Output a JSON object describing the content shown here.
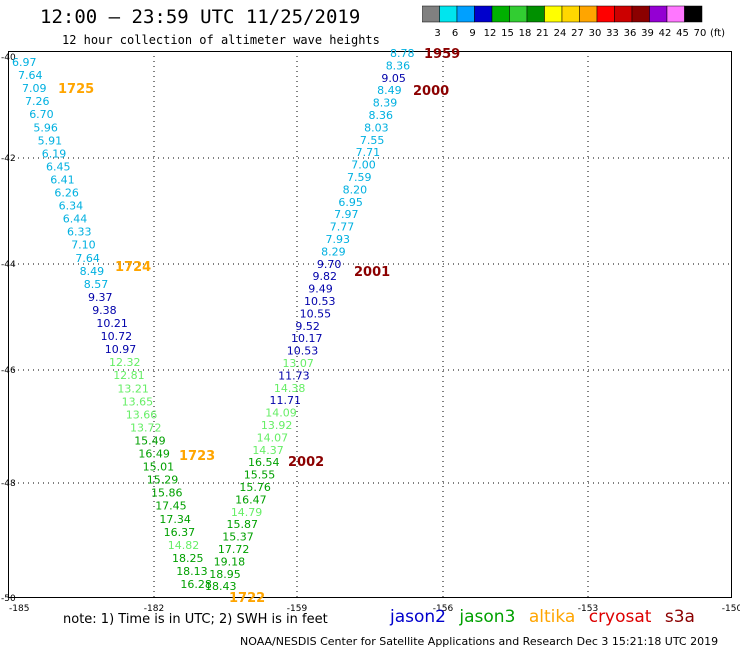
{
  "header": {
    "title": "12:00 – 23:59 UTC 11/25/2019",
    "subtitle": "12 hour collection of altimeter wave heights"
  },
  "colorbar": {
    "colors": [
      "#808080",
      "#00e5ee",
      "#00a0ff",
      "#0000cc",
      "#00b000",
      "#32cd32",
      "#009000",
      "#ffff00",
      "#ffd700",
      "#ffa500",
      "#ff0000",
      "#cc0000",
      "#8b0000",
      "#9400d3",
      "#ff77ff",
      "#000000"
    ],
    "labels": [
      "3",
      "6",
      "9",
      "12",
      "15",
      "18",
      "21",
      "24",
      "27",
      "30",
      "33",
      "36",
      "39",
      "42",
      "45",
      "70",
      "(ft)"
    ]
  },
  "map": {
    "lat_labels": [
      "-40",
      "-42",
      "-44",
      "-46",
      "-48",
      "-50"
    ],
    "lon_labels": [
      "-185",
      "-182",
      "-159",
      "-156",
      "-153",
      "-150"
    ],
    "time_labels": [
      {
        "text": "1959",
        "color": "#8b0000"
      },
      {
        "text": "2000",
        "color": "#8b0000"
      },
      {
        "text": "2001",
        "color": "#8b0000"
      },
      {
        "text": "2002",
        "color": "#8b0000"
      },
      {
        "text": "1725",
        "color": "#ffa500"
      },
      {
        "text": "1724",
        "color": "#ffa500"
      },
      {
        "text": "1723",
        "color": "#ffa500"
      },
      {
        "text": "1722",
        "color": "#ffa500"
      }
    ],
    "west_track": [
      {
        "v": "6.97",
        "c": "#00b0e0"
      },
      {
        "v": "7.64",
        "c": "#00b0e0"
      },
      {
        "v": "7.09",
        "c": "#00b0e0"
      },
      {
        "v": "7.26",
        "c": "#00b0e0"
      },
      {
        "v": "6.70",
        "c": "#00b0e0"
      },
      {
        "v": "5.96",
        "c": "#00b0e0"
      },
      {
        "v": "5.91",
        "c": "#00b0e0"
      },
      {
        "v": "6.19",
        "c": "#00b0e0"
      },
      {
        "v": "6.45",
        "c": "#00b0e0"
      },
      {
        "v": "6.41",
        "c": "#00b0e0"
      },
      {
        "v": "6.26",
        "c": "#00b0e0"
      },
      {
        "v": "6.34",
        "c": "#00b0e0"
      },
      {
        "v": "6.44",
        "c": "#00b0e0"
      },
      {
        "v": "6.33",
        "c": "#00b0e0"
      },
      {
        "v": "7.10",
        "c": "#00b0e0"
      },
      {
        "v": "7.64",
        "c": "#00b0e0"
      },
      {
        "v": "8.49",
        "c": "#00b0e0"
      },
      {
        "v": "8.57",
        "c": "#00b0e0"
      },
      {
        "v": "9.37",
        "c": "#0000aa"
      },
      {
        "v": "9.38",
        "c": "#0000aa"
      },
      {
        "v": "10.21",
        "c": "#0000aa"
      },
      {
        "v": "10.72",
        "c": "#0000aa"
      },
      {
        "v": "10.97",
        "c": "#0000aa"
      },
      {
        "v": "12.32",
        "c": "#66ee66"
      },
      {
        "v": "12.81",
        "c": "#66ee66"
      },
      {
        "v": "13.21",
        "c": "#66ee66"
      },
      {
        "v": "13.65",
        "c": "#66ee66"
      },
      {
        "v": "13.66",
        "c": "#66ee66"
      },
      {
        "v": "13.72",
        "c": "#66ee66"
      },
      {
        "v": "15.49",
        "c": "#00a000"
      },
      {
        "v": "16.49",
        "c": "#00a000"
      },
      {
        "v": "15.01",
        "c": "#00a000"
      },
      {
        "v": "15.29",
        "c": "#00a000"
      },
      {
        "v": "15.86",
        "c": "#00a000"
      },
      {
        "v": "17.45",
        "c": "#00a000"
      },
      {
        "v": "17.34",
        "c": "#00a000"
      },
      {
        "v": "16.37",
        "c": "#00a000"
      },
      {
        "v": "14.82",
        "c": "#66ee66"
      },
      {
        "v": "18.25",
        "c": "#00a000"
      },
      {
        "v": "18.13",
        "c": "#00a000"
      },
      {
        "v": "16.28",
        "c": "#00a000"
      }
    ],
    "east_track": [
      {
        "v": "8.78",
        "c": "#00b0e0"
      },
      {
        "v": "8.36",
        "c": "#00b0e0"
      },
      {
        "v": "9.05",
        "c": "#0000aa"
      },
      {
        "v": "8.49",
        "c": "#00b0e0"
      },
      {
        "v": "8.39",
        "c": "#00b0e0"
      },
      {
        "v": "8.36",
        "c": "#00b0e0"
      },
      {
        "v": "8.03",
        "c": "#00b0e0"
      },
      {
        "v": "7.55",
        "c": "#00b0e0"
      },
      {
        "v": "7.71",
        "c": "#00b0e0"
      },
      {
        "v": "7.00",
        "c": "#00b0e0"
      },
      {
        "v": "7.59",
        "c": "#00b0e0"
      },
      {
        "v": "8.20",
        "c": "#00b0e0"
      },
      {
        "v": "6.95",
        "c": "#00b0e0"
      },
      {
        "v": "7.97",
        "c": "#00b0e0"
      },
      {
        "v": "7.77",
        "c": "#00b0e0"
      },
      {
        "v": "7.93",
        "c": "#00b0e0"
      },
      {
        "v": "8.29",
        "c": "#00b0e0"
      },
      {
        "v": "9.70",
        "c": "#0000aa"
      },
      {
        "v": "9.82",
        "c": "#0000aa"
      },
      {
        "v": "9.49",
        "c": "#0000aa"
      },
      {
        "v": "10.53",
        "c": "#0000aa"
      },
      {
        "v": "10.55",
        "c": "#0000aa"
      },
      {
        "v": "9.52",
        "c": "#0000aa"
      },
      {
        "v": "10.17",
        "c": "#0000aa"
      },
      {
        "v": "10.53",
        "c": "#0000aa"
      },
      {
        "v": "13.07",
        "c": "#66ee66"
      },
      {
        "v": "11.73",
        "c": "#0000aa"
      },
      {
        "v": "14.38",
        "c": "#66ee66"
      },
      {
        "v": "11.71",
        "c": "#0000aa"
      },
      {
        "v": "14.09",
        "c": "#66ee66"
      },
      {
        "v": "13.92",
        "c": "#66ee66"
      },
      {
        "v": "14.07",
        "c": "#66ee66"
      },
      {
        "v": "14.37",
        "c": "#66ee66"
      },
      {
        "v": "16.54",
        "c": "#00a000"
      },
      {
        "v": "15.55",
        "c": "#00a000"
      },
      {
        "v": "15.76",
        "c": "#00a000"
      },
      {
        "v": "16.47",
        "c": "#00a000"
      },
      {
        "v": "14.79",
        "c": "#66ee66"
      },
      {
        "v": "15.87",
        "c": "#00a000"
      },
      {
        "v": "15.37",
        "c": "#00a000"
      },
      {
        "v": "17.72",
        "c": "#00a000"
      },
      {
        "v": "19.18",
        "c": "#00a000"
      },
      {
        "v": "18.95",
        "c": "#00a000"
      },
      {
        "v": "18.43",
        "c": "#00a000"
      }
    ]
  },
  "footer": {
    "note": "note: 1) Time is in UTC; 2) SWH is in feet",
    "satellites": [
      {
        "name": "jason2",
        "color": "#0000cc"
      },
      {
        "name": "jason3",
        "color": "#00a000"
      },
      {
        "name": "altika",
        "color": "#ffa500"
      },
      {
        "name": "cryosat",
        "color": "#dd0000"
      },
      {
        "name": "s3a",
        "color": "#8b0000"
      }
    ],
    "credit": "NOAA/NESDIS Center for Satellite Applications and Research    Dec  3 15:21:18 UTC 2019"
  }
}
